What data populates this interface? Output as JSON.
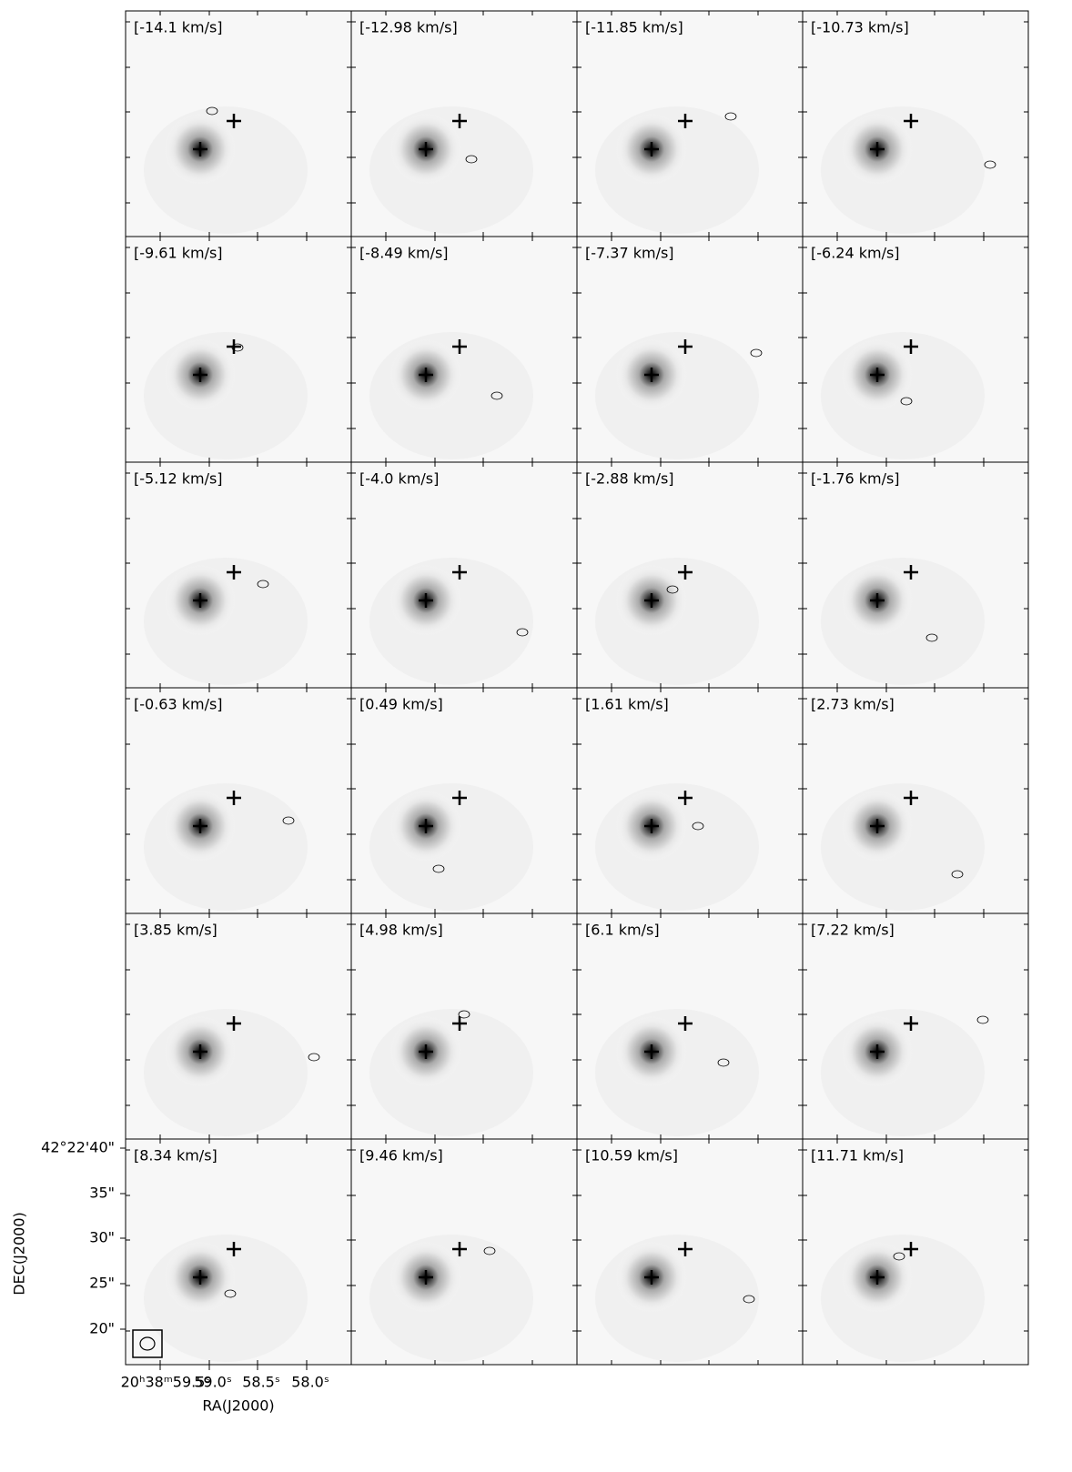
{
  "panels": [
    {
      "label": "[-14.1 km/s]"
    },
    {
      "label": "[-12.98 km/s]"
    },
    {
      "label": "[-11.85 km/s]"
    },
    {
      "label": "[-10.73 km/s]"
    },
    {
      "label": "[-9.61 km/s]"
    },
    {
      "label": "[-8.49 km/s]"
    },
    {
      "label": "[-7.37 km/s]"
    },
    {
      "label": "[-6.24 km/s]"
    },
    {
      "label": "[-5.12 km/s]"
    },
    {
      "label": "[-4.0 km/s]"
    },
    {
      "label": "[-2.88 km/s]"
    },
    {
      "label": "[-1.76 km/s]"
    },
    {
      "label": "[-0.63 km/s]"
    },
    {
      "label": "[0.49 km/s]"
    },
    {
      "label": "[1.61 km/s]"
    },
    {
      "label": "[2.73 km/s]"
    },
    {
      "label": "[3.85 km/s]"
    },
    {
      "label": "[4.98 km/s]"
    },
    {
      "label": "[6.1 km/s]"
    },
    {
      "label": "[7.22 km/s]"
    },
    {
      "label": "[8.34 km/s]"
    },
    {
      "label": "[9.46 km/s]"
    },
    {
      "label": "[10.59 km/s]"
    },
    {
      "label": "[11.71 km/s]"
    }
  ],
  "x_axis": {
    "label": "RA(J2000)",
    "ticks": [
      "20ʰ38ᵐ59.5ˢ",
      "59.0ˢ",
      "58.5ˢ",
      "58.0ˢ"
    ]
  },
  "y_axis": {
    "label": "DEC(J2000)",
    "ticks": [
      "42°22'40\"",
      "35\"",
      "30\"",
      "25\"",
      "20\""
    ]
  }
}
